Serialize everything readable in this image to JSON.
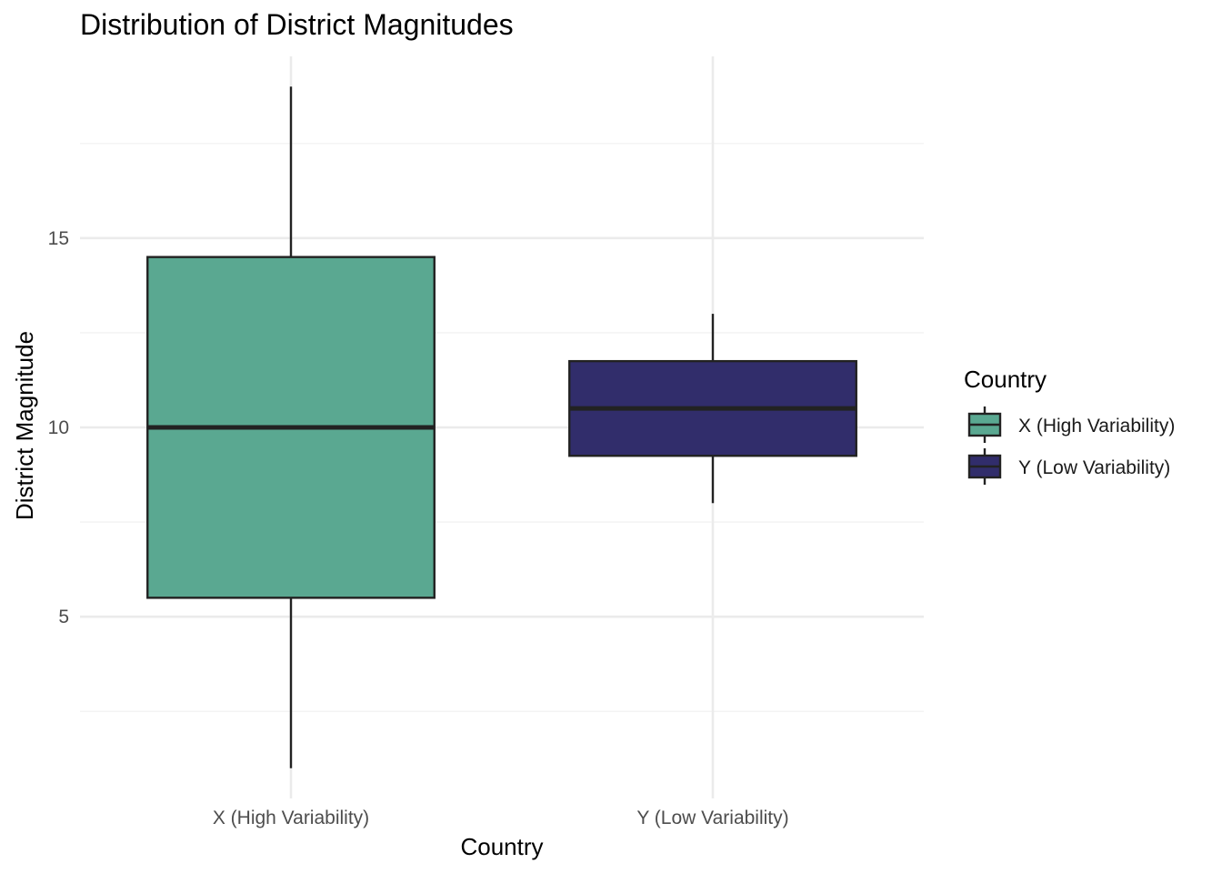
{
  "chart_data": {
    "type": "boxplot",
    "title": "Distribution of District Magnitudes",
    "xlabel": "Country",
    "ylabel": "District Magnitude",
    "ylim": [
      0.2,
      19.8
    ],
    "yticks": [
      5,
      10,
      15
    ],
    "grid": true,
    "legend": {
      "title": "Country",
      "position": "right"
    },
    "categories": [
      "X (High Variability)",
      "Y (Low Variability)"
    ],
    "series": [
      {
        "name": "X (High Variability)",
        "color": "#5AA891",
        "whisker_low": 1,
        "q1": 5.5,
        "median": 10,
        "q3": 14.5,
        "whisker_high": 19
      },
      {
        "name": "Y (Low Variability)",
        "color": "#312D6B",
        "whisker_low": 8,
        "q1": 9.25,
        "median": 10.5,
        "q3": 11.75,
        "whisker_high": 13
      }
    ],
    "colors": {
      "grid_major": "#EBEBEB",
      "grid_minor": "#F2F2F2",
      "outline": "#222222"
    }
  }
}
